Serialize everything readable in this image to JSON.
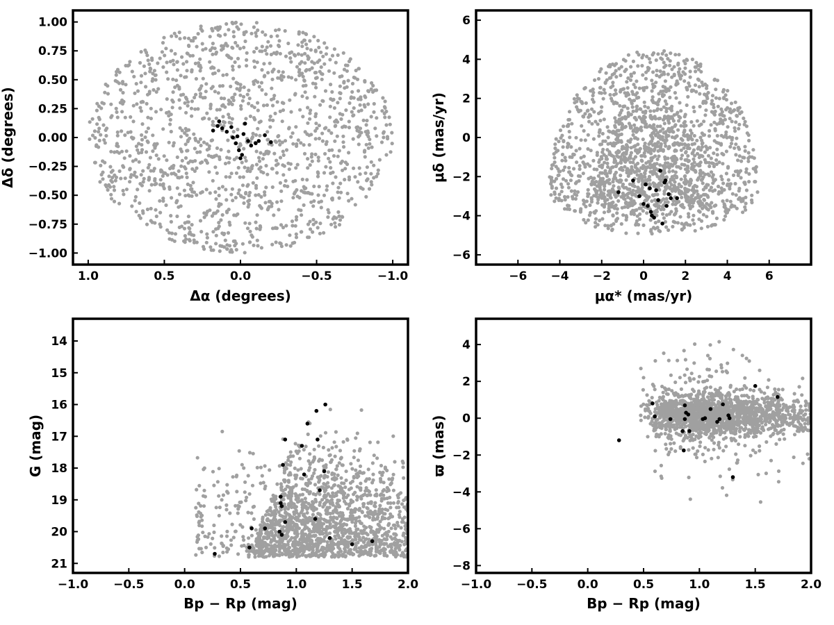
{
  "colors": {
    "field": "#a0a0a0",
    "member": "#000000",
    "frame": "#000000"
  },
  "chart_data": [
    {
      "id": "sky",
      "type": "scatter",
      "xlabel": "Δα (degrees)",
      "ylabel": "Δδ (degrees)",
      "xlim": [
        1.1,
        -1.1
      ],
      "ylim": [
        -1.1,
        1.1
      ],
      "x_reversed": true,
      "xticks": [
        1.0,
        0.5,
        0.0,
        -0.5,
        -1.0
      ],
      "xtick_labels": [
        "1.0",
        "0.5",
        "0.0",
        "−0.5",
        "−1.0"
      ],
      "yticks": [
        1.0,
        0.75,
        0.5,
        0.25,
        0.0,
        -0.25,
        -0.5,
        -0.75,
        -1.0
      ],
      "ytick_labels": [
        "1.00",
        "0.75",
        "0.50",
        "0.25",
        "0.00",
        "−0.25",
        "−0.50",
        "−0.75",
        "−1.00"
      ],
      "grid": false,
      "field_distribution": {
        "shape": "disk",
        "center": [
          0,
          0
        ],
        "radius_deg": 1.0,
        "count": 1400
      },
      "members": [
        {
          "x": 0.18,
          "y": 0.06
        },
        {
          "x": 0.15,
          "y": 0.1
        },
        {
          "x": 0.14,
          "y": 0.14
        },
        {
          "x": 0.12,
          "y": 0.08
        },
        {
          "x": 0.09,
          "y": 0.05
        },
        {
          "x": 0.06,
          "y": 0.09
        },
        {
          "x": 0.05,
          "y": 0.0
        },
        {
          "x": 0.03,
          "y": -0.05
        },
        {
          "x": 0.02,
          "y": 0.01
        },
        {
          "x": 0.01,
          "y": -0.11
        },
        {
          "x": 0.0,
          "y": -0.18
        },
        {
          "x": -0.01,
          "y": -0.15
        },
        {
          "x": -0.02,
          "y": 0.03
        },
        {
          "x": -0.03,
          "y": 0.12
        },
        {
          "x": -0.05,
          "y": -0.03
        },
        {
          "x": -0.07,
          "y": -0.07
        },
        {
          "x": -0.1,
          "y": -0.05
        },
        {
          "x": -0.12,
          "y": -0.03
        },
        {
          "x": -0.16,
          "y": 0.02
        },
        {
          "x": -0.2,
          "y": -0.04
        }
      ]
    },
    {
      "id": "pm",
      "type": "scatter",
      "xlabel": "μα* (mas/yr)",
      "ylabel": "μδ (mas/yr)",
      "xlim": [
        -8,
        8
      ],
      "ylim": [
        -6.5,
        6.5
      ],
      "xticks": [
        -6,
        -4,
        -2,
        0,
        2,
        4,
        6
      ],
      "xtick_labels": [
        "−6",
        "−4",
        "−2",
        "0",
        "2",
        "4",
        "6"
      ],
      "yticks": [
        6,
        4,
        2,
        0,
        -2,
        -4,
        -6
      ],
      "ytick_labels": [
        "6",
        "4",
        "2",
        "0",
        "−2",
        "−4",
        "−6"
      ],
      "grid": false,
      "field_distribution": {
        "shape": "truncated-ellipse",
        "center": [
          0.5,
          -2.5
        ],
        "radius_x": 5.0,
        "radius_y_down": 2.5,
        "radius_y_up": 7.0,
        "floor": -5.0,
        "count": 1800
      },
      "members": [
        {
          "x": -1.2,
          "y": -2.8
        },
        {
          "x": -0.5,
          "y": -2.2
        },
        {
          "x": -0.2,
          "y": -3.0
        },
        {
          "x": 0.0,
          "y": -3.4
        },
        {
          "x": 0.1,
          "y": -2.4
        },
        {
          "x": 0.2,
          "y": -3.5
        },
        {
          "x": 0.3,
          "y": -2.6
        },
        {
          "x": 0.35,
          "y": -3.8
        },
        {
          "x": 0.4,
          "y": -4.0
        },
        {
          "x": 0.5,
          "y": -4.1
        },
        {
          "x": 0.6,
          "y": -2.7
        },
        {
          "x": 0.7,
          "y": -3.2
        },
        {
          "x": 0.8,
          "y": -1.7
        },
        {
          "x": 0.9,
          "y": -4.4
        },
        {
          "x": 1.0,
          "y": -2.3
        },
        {
          "x": 1.05,
          "y": -2.2
        },
        {
          "x": 1.1,
          "y": -3.5
        },
        {
          "x": 1.2,
          "y": -2.9
        },
        {
          "x": 1.3,
          "y": -3.1
        },
        {
          "x": 1.6,
          "y": -3.1
        }
      ]
    },
    {
      "id": "cmd",
      "type": "scatter",
      "xlabel": "Bp − Rp (mag)",
      "ylabel": "G (mag)",
      "xlim": [
        -1.0,
        2.0
      ],
      "ylim": [
        13.3,
        21.3
      ],
      "y_reversed": true,
      "xticks": [
        -1.0,
        -0.5,
        0.0,
        0.5,
        1.0,
        1.5,
        2.0
      ],
      "xtick_labels": [
        "−1.0",
        "−0.5",
        "0.0",
        "0.5",
        "1.0",
        "1.5",
        "2.0"
      ],
      "yticks": [
        21,
        20,
        19,
        18,
        17,
        16,
        15,
        14
      ],
      "ytick_labels": [
        "21",
        "20",
        "19",
        "18",
        "17",
        "16",
        "15",
        "14"
      ],
      "grid": false,
      "field_distribution": {
        "shape": "cmd-wedge",
        "g_faint": 20.8,
        "count": 1700
      },
      "members": [
        {
          "x": 0.27,
          "y": 20.7
        },
        {
          "x": 0.58,
          "y": 20.5
        },
        {
          "x": 0.6,
          "y": 19.9
        },
        {
          "x": 0.72,
          "y": 19.9
        },
        {
          "x": 0.85,
          "y": 20.0
        },
        {
          "x": 0.87,
          "y": 20.1
        },
        {
          "x": 0.9,
          "y": 19.7
        },
        {
          "x": 0.87,
          "y": 19.2
        },
        {
          "x": 0.86,
          "y": 19.1
        },
        {
          "x": 0.86,
          "y": 18.9
        },
        {
          "x": 0.88,
          "y": 17.9
        },
        {
          "x": 0.9,
          "y": 17.1
        },
        {
          "x": 1.05,
          "y": 17.3
        },
        {
          "x": 1.07,
          "y": 18.2
        },
        {
          "x": 1.1,
          "y": 16.6
        },
        {
          "x": 1.17,
          "y": 19.6
        },
        {
          "x": 1.18,
          "y": 16.2
        },
        {
          "x": 1.19,
          "y": 17.1
        },
        {
          "x": 1.21,
          "y": 18.7
        },
        {
          "x": 1.25,
          "y": 18.1
        },
        {
          "x": 1.26,
          "y": 16.0
        },
        {
          "x": 1.3,
          "y": 20.2
        },
        {
          "x": 1.5,
          "y": 20.4
        },
        {
          "x": 1.68,
          "y": 20.3
        }
      ]
    },
    {
      "id": "plx",
      "type": "scatter",
      "xlabel": "Bp − Rp (mag)",
      "ylabel": "ϖ (mas)",
      "xlim": [
        -1.0,
        2.0
      ],
      "ylim": [
        -8.4,
        5.4
      ],
      "xticks": [
        -1.0,
        -0.5,
        0.0,
        0.5,
        1.0,
        1.5,
        2.0
      ],
      "xtick_labels": [
        "−1.0",
        "−0.5",
        "0.0",
        "0.5",
        "1.0",
        "1.5",
        "2.0"
      ],
      "yticks": [
        4,
        2,
        0,
        -2,
        -4,
        -6,
        -8
      ],
      "ytick_labels": [
        "4",
        "2",
        "0",
        "−2",
        "−4",
        "−6",
        "−8"
      ],
      "grid": false,
      "field_distribution": {
        "shape": "band",
        "center_y": 0.2,
        "count": 1700
      },
      "members": [
        {
          "x": 0.28,
          "y": -1.2
        },
        {
          "x": 0.58,
          "y": 0.8
        },
        {
          "x": 0.6,
          "y": 0.1
        },
        {
          "x": 0.74,
          "y": -0.05
        },
        {
          "x": 0.85,
          "y": -0.7
        },
        {
          "x": 0.86,
          "y": -1.75
        },
        {
          "x": 0.87,
          "y": -0.05
        },
        {
          "x": 0.87,
          "y": 0.7
        },
        {
          "x": 0.88,
          "y": 0.3
        },
        {
          "x": 0.9,
          "y": 0.2
        },
        {
          "x": 0.91,
          "y": -0.7
        },
        {
          "x": 1.03,
          "y": -0.05
        },
        {
          "x": 1.05,
          "y": 0.0
        },
        {
          "x": 1.1,
          "y": 0.5
        },
        {
          "x": 1.16,
          "y": -0.2
        },
        {
          "x": 1.18,
          "y": -0.05
        },
        {
          "x": 1.21,
          "y": 0.75
        },
        {
          "x": 1.26,
          "y": 0.15
        },
        {
          "x": 1.27,
          "y": 0.0
        },
        {
          "x": 1.3,
          "y": -3.2
        },
        {
          "x": 1.5,
          "y": 1.75
        },
        {
          "x": 1.7,
          "y": 1.15
        }
      ]
    }
  ]
}
